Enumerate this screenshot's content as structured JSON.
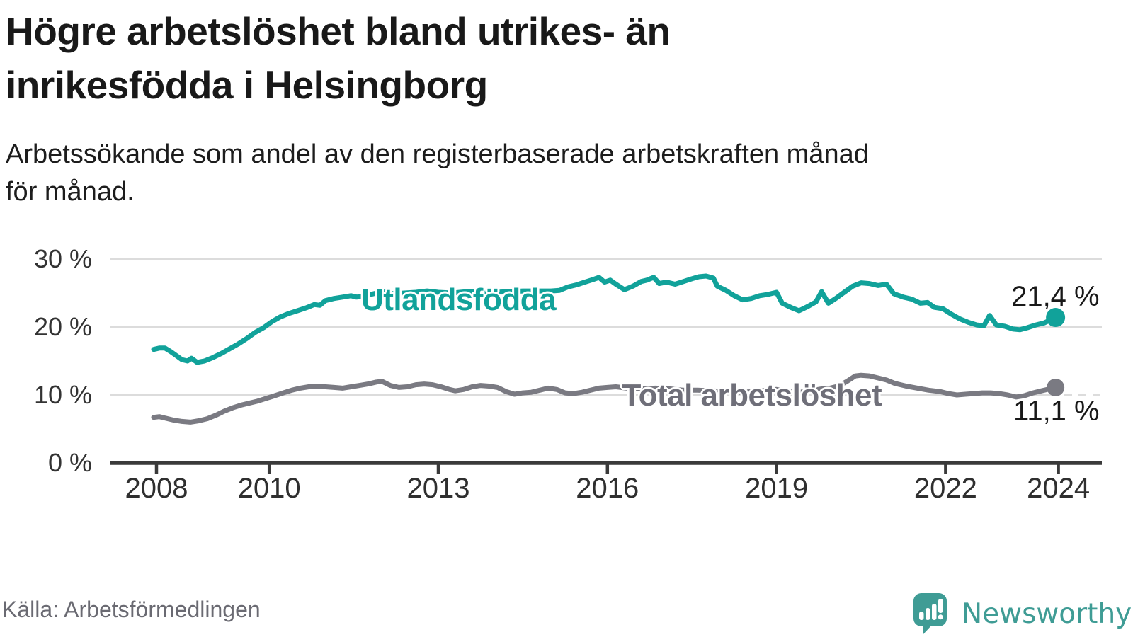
{
  "header": {
    "title_lines": [
      "Högre arbetslöshet bland utrikes- än",
      "inrikesfödda i Helsingborg"
    ],
    "subtitle_lines": [
      "Arbetssökande som andel av den registerbaserade arbetskraften månad",
      "för månad."
    ]
  },
  "footer": {
    "source": "Källa: Arbetsförmedlingen",
    "logo_text": "Newsworthy"
  },
  "colors": {
    "teal": "#11a29a",
    "gray_line": "#7a7a82",
    "gray_label": "#6f6f79",
    "title_text": "#191919",
    "axis_text": "#2f2f2f",
    "ytick_text": "#333333",
    "grid": "#dcdcdc",
    "axis_line": "#3a3a3a",
    "value_text": "#191919",
    "source_text": "#6a6a72",
    "logo": "#3f9c95"
  },
  "chart_data": {
    "type": "line",
    "title": "Högre arbetslöshet bland utrikes- än inrikesfödda i Helsingborg",
    "subtitle": "Arbetssökande som andel av den registerbaserade arbetskraften månad för månad.",
    "grid": "horizontal",
    "legend_position": "inline-labels",
    "x_axis": {
      "tick_labels": [
        "2008",
        "2010",
        "2013",
        "2016",
        "2019",
        "2022",
        "2024"
      ],
      "tick_values": [
        2008,
        2010,
        2013,
        2016,
        2019,
        2022,
        2024
      ],
      "range_years": [
        2007.8,
        2024.4
      ]
    },
    "y_axis": {
      "tick_labels": [
        "0 %",
        "10 %",
        "20 %",
        "30 %"
      ],
      "tick_values": [
        0,
        10,
        20,
        30
      ],
      "unit": "%",
      "range": [
        0,
        31.5
      ]
    },
    "series": [
      {
        "name": "Utlandsfödda",
        "slug": "utlandsfodda",
        "color": "#11a29a",
        "label_color": "#11a29a",
        "label_anchor": [
          2011.63,
          24.0
        ],
        "end_label": "21,4 %",
        "last_value": 21.4,
        "points": [
          [
            2007.95,
            16.7
          ],
          [
            2008.05,
            16.9
          ],
          [
            2008.15,
            16.9
          ],
          [
            2008.25,
            16.4
          ],
          [
            2008.35,
            15.8
          ],
          [
            2008.45,
            15.2
          ],
          [
            2008.55,
            15.0
          ],
          [
            2008.62,
            15.4
          ],
          [
            2008.72,
            14.8
          ],
          [
            2008.85,
            15.0
          ],
          [
            2009.0,
            15.5
          ],
          [
            2009.15,
            16.1
          ],
          [
            2009.3,
            16.8
          ],
          [
            2009.45,
            17.5
          ],
          [
            2009.6,
            18.3
          ],
          [
            2009.75,
            19.2
          ],
          [
            2009.9,
            19.9
          ],
          [
            2010.05,
            20.8
          ],
          [
            2010.2,
            21.5
          ],
          [
            2010.35,
            22.0
          ],
          [
            2010.5,
            22.4
          ],
          [
            2010.65,
            22.8
          ],
          [
            2010.8,
            23.3
          ],
          [
            2010.9,
            23.2
          ],
          [
            2011.0,
            23.9
          ],
          [
            2011.15,
            24.2
          ],
          [
            2011.3,
            24.4
          ],
          [
            2011.45,
            24.6
          ],
          [
            2011.55,
            24.4
          ],
          [
            2011.7,
            24.6
          ],
          [
            2011.85,
            24.9
          ],
          [
            2012.0,
            25.2
          ],
          [
            2012.2,
            24.9
          ],
          [
            2012.4,
            25.0
          ],
          [
            2012.6,
            25.1
          ],
          [
            2012.8,
            25.3
          ],
          [
            2013.0,
            25.1
          ],
          [
            2013.25,
            25.0
          ],
          [
            2013.5,
            25.2
          ],
          [
            2013.75,
            25.2
          ],
          [
            2014.0,
            25.1
          ],
          [
            2014.25,
            25.2
          ],
          [
            2014.5,
            25.3
          ],
          [
            2014.75,
            25.3
          ],
          [
            2015.0,
            25.3
          ],
          [
            2015.15,
            25.4
          ],
          [
            2015.3,
            25.9
          ],
          [
            2015.45,
            26.2
          ],
          [
            2015.6,
            26.6
          ],
          [
            2015.75,
            27.0
          ],
          [
            2015.85,
            27.3
          ],
          [
            2015.95,
            26.6
          ],
          [
            2016.05,
            26.9
          ],
          [
            2016.15,
            26.3
          ],
          [
            2016.3,
            25.5
          ],
          [
            2016.45,
            26.0
          ],
          [
            2016.6,
            26.7
          ],
          [
            2016.7,
            26.9
          ],
          [
            2016.82,
            27.3
          ],
          [
            2016.92,
            26.4
          ],
          [
            2017.05,
            26.6
          ],
          [
            2017.2,
            26.3
          ],
          [
            2017.35,
            26.7
          ],
          [
            2017.5,
            27.1
          ],
          [
            2017.62,
            27.4
          ],
          [
            2017.75,
            27.5
          ],
          [
            2017.88,
            27.2
          ],
          [
            2017.95,
            26.0
          ],
          [
            2018.1,
            25.4
          ],
          [
            2018.25,
            24.6
          ],
          [
            2018.4,
            24.0
          ],
          [
            2018.55,
            24.2
          ],
          [
            2018.7,
            24.6
          ],
          [
            2018.85,
            24.8
          ],
          [
            2019.0,
            25.1
          ],
          [
            2019.1,
            23.5
          ],
          [
            2019.25,
            22.9
          ],
          [
            2019.4,
            22.4
          ],
          [
            2019.55,
            23.0
          ],
          [
            2019.7,
            23.7
          ],
          [
            2019.8,
            25.2
          ],
          [
            2019.92,
            23.5
          ],
          [
            2020.05,
            24.2
          ],
          [
            2020.2,
            25.1
          ],
          [
            2020.35,
            26.0
          ],
          [
            2020.5,
            26.5
          ],
          [
            2020.65,
            26.4
          ],
          [
            2020.8,
            26.1
          ],
          [
            2020.95,
            26.3
          ],
          [
            2021.08,
            24.9
          ],
          [
            2021.25,
            24.4
          ],
          [
            2021.4,
            24.1
          ],
          [
            2021.55,
            23.5
          ],
          [
            2021.68,
            23.6
          ],
          [
            2021.8,
            22.9
          ],
          [
            2021.95,
            22.7
          ],
          [
            2022.1,
            21.9
          ],
          [
            2022.25,
            21.2
          ],
          [
            2022.4,
            20.7
          ],
          [
            2022.55,
            20.3
          ],
          [
            2022.68,
            20.2
          ],
          [
            2022.78,
            21.7
          ],
          [
            2022.9,
            20.3
          ],
          [
            2023.05,
            20.1
          ],
          [
            2023.2,
            19.7
          ],
          [
            2023.32,
            19.6
          ],
          [
            2023.45,
            19.9
          ],
          [
            2023.6,
            20.3
          ],
          [
            2023.75,
            20.6
          ],
          [
            2023.85,
            21.0
          ],
          [
            2023.95,
            21.4
          ]
        ]
      },
      {
        "name": "Total arbetslöshet",
        "slug": "total-arbetsloshet",
        "color": "#7a7a82",
        "label_color": "#6f6f79",
        "label_anchor": [
          2016.26,
          9.85
        ],
        "end_label": "11,1 %",
        "last_value": 11.1,
        "points": [
          [
            2007.95,
            6.7
          ],
          [
            2008.05,
            6.8
          ],
          [
            2008.15,
            6.6
          ],
          [
            2008.3,
            6.3
          ],
          [
            2008.45,
            6.1
          ],
          [
            2008.6,
            6.0
          ],
          [
            2008.75,
            6.2
          ],
          [
            2008.9,
            6.5
          ],
          [
            2009.05,
            7.0
          ],
          [
            2009.2,
            7.6
          ],
          [
            2009.35,
            8.1
          ],
          [
            2009.5,
            8.5
          ],
          [
            2009.65,
            8.8
          ],
          [
            2009.8,
            9.1
          ],
          [
            2009.95,
            9.5
          ],
          [
            2010.1,
            9.9
          ],
          [
            2010.25,
            10.3
          ],
          [
            2010.4,
            10.7
          ],
          [
            2010.55,
            11.0
          ],
          [
            2010.7,
            11.2
          ],
          [
            2010.85,
            11.3
          ],
          [
            2011.0,
            11.2
          ],
          [
            2011.15,
            11.1
          ],
          [
            2011.3,
            11.0
          ],
          [
            2011.45,
            11.2
          ],
          [
            2011.6,
            11.4
          ],
          [
            2011.75,
            11.6
          ],
          [
            2011.9,
            11.9
          ],
          [
            2012.0,
            12.0
          ],
          [
            2012.15,
            11.4
          ],
          [
            2012.3,
            11.1
          ],
          [
            2012.45,
            11.2
          ],
          [
            2012.6,
            11.5
          ],
          [
            2012.75,
            11.6
          ],
          [
            2012.9,
            11.5
          ],
          [
            2013.05,
            11.2
          ],
          [
            2013.2,
            10.8
          ],
          [
            2013.3,
            10.6
          ],
          [
            2013.45,
            10.8
          ],
          [
            2013.6,
            11.2
          ],
          [
            2013.75,
            11.4
          ],
          [
            2013.9,
            11.3
          ],
          [
            2014.05,
            11.1
          ],
          [
            2014.2,
            10.5
          ],
          [
            2014.35,
            10.1
          ],
          [
            2014.5,
            10.3
          ],
          [
            2014.65,
            10.4
          ],
          [
            2014.8,
            10.7
          ],
          [
            2014.95,
            11.0
          ],
          [
            2015.1,
            10.8
          ],
          [
            2015.25,
            10.3
          ],
          [
            2015.4,
            10.2
          ],
          [
            2015.55,
            10.4
          ],
          [
            2015.7,
            10.7
          ],
          [
            2015.85,
            11.0
          ],
          [
            2016.0,
            11.1
          ],
          [
            2016.15,
            11.2
          ],
          [
            2016.35,
            11.0
          ],
          [
            2016.6,
            10.9
          ],
          [
            2016.85,
            11.0
          ],
          [
            2017.1,
            10.9
          ],
          [
            2017.35,
            10.7
          ],
          [
            2017.6,
            10.7
          ],
          [
            2017.85,
            10.6
          ],
          [
            2018.1,
            10.5
          ],
          [
            2018.35,
            10.4
          ],
          [
            2018.6,
            10.5
          ],
          [
            2018.85,
            10.7
          ],
          [
            2019.0,
            10.8
          ],
          [
            2019.2,
            10.5
          ],
          [
            2019.4,
            10.4
          ],
          [
            2019.6,
            10.6
          ],
          [
            2019.8,
            10.9
          ],
          [
            2019.95,
            11.0
          ],
          [
            2020.1,
            11.3
          ],
          [
            2020.25,
            12.0
          ],
          [
            2020.4,
            12.8
          ],
          [
            2020.5,
            12.9
          ],
          [
            2020.65,
            12.8
          ],
          [
            2020.8,
            12.5
          ],
          [
            2020.95,
            12.2
          ],
          [
            2021.1,
            11.7
          ],
          [
            2021.3,
            11.3
          ],
          [
            2021.5,
            11.0
          ],
          [
            2021.7,
            10.7
          ],
          [
            2021.9,
            10.5
          ],
          [
            2022.05,
            10.2
          ],
          [
            2022.2,
            10.0
          ],
          [
            2022.35,
            10.1
          ],
          [
            2022.5,
            10.2
          ],
          [
            2022.65,
            10.3
          ],
          [
            2022.8,
            10.3
          ],
          [
            2022.95,
            10.2
          ],
          [
            2023.1,
            10.0
          ],
          [
            2023.25,
            9.7
          ],
          [
            2023.4,
            9.9
          ],
          [
            2023.55,
            10.3
          ],
          [
            2023.7,
            10.6
          ],
          [
            2023.85,
            10.9
          ],
          [
            2023.95,
            11.1
          ]
        ]
      }
    ]
  }
}
